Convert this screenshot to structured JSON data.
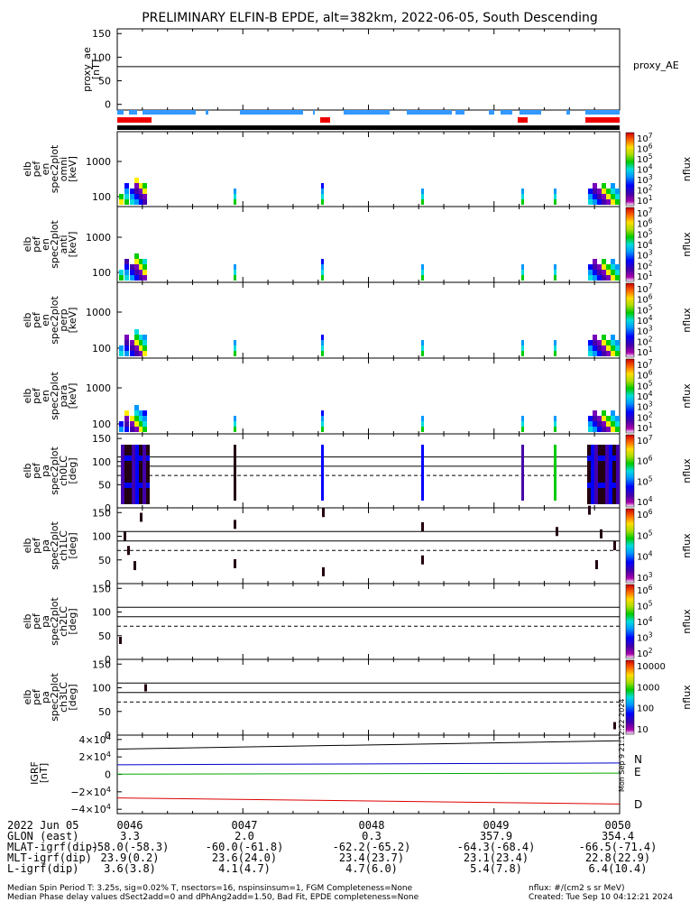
{
  "title": "PRELIMINARY ELFIN-B EPDE, alt=382km, 2022-06-05, South Descending",
  "colors": {
    "blue_bar": "#3399ff",
    "red_bar": "#ee0000",
    "black_bar": "#000000",
    "N": "#0000cc",
    "E": "#00aa00",
    "D": "#dd0000"
  },
  "chart_data": [
    {
      "type": "line",
      "panel": "proxy_ae",
      "ylabel": [
        "proxy_ae",
        "[nT]"
      ],
      "legend": "proxy_AE",
      "ylim": [
        -12,
        160
      ],
      "yticks": [
        "150",
        "100",
        "50",
        "0"
      ],
      "x": [
        0,
        1
      ],
      "values": [
        80,
        80
      ]
    },
    {
      "type": "heatmap",
      "panel": "elb_pef_en_spec2plot_omni",
      "ylabel": [
        "elb",
        "pef",
        "en",
        "spec2plot",
        "omni",
        "[keV]"
      ],
      "yticks": [
        "1000",
        "100"
      ],
      "colorbar": {
        "label": "nflux",
        "ticks": [
          "10^7",
          "10^6",
          "10^5",
          "10^4",
          "10^3",
          "10^2",
          "10^1"
        ]
      }
    },
    {
      "type": "heatmap",
      "panel": "elb_pef_en_spec2plot_anti",
      "ylabel": [
        "elb",
        "pef",
        "en",
        "spec2plot",
        "anti",
        "[keV]"
      ],
      "yticks": [
        "1000",
        "100"
      ],
      "colorbar": {
        "label": "nflux",
        "ticks": [
          "10^7",
          "10^6",
          "10^5",
          "10^4",
          "10^3",
          "10^2",
          "10^1"
        ]
      }
    },
    {
      "type": "heatmap",
      "panel": "elb_pef_en_spec2plot_perp",
      "ylabel": [
        "elb",
        "pef",
        "en",
        "spec2plot",
        "perp",
        "[keV]"
      ],
      "yticks": [
        "1000",
        "100"
      ],
      "colorbar": {
        "label": "nflux",
        "ticks": [
          "10^7",
          "10^6",
          "10^5",
          "10^4",
          "10^3",
          "10^2",
          "10^1"
        ]
      }
    },
    {
      "type": "heatmap",
      "panel": "elb_pef_en_spec2plot_para",
      "ylabel": [
        "elb",
        "pef",
        "en",
        "spec2plot",
        "para",
        "[keV]"
      ],
      "yticks": [
        "1000",
        "100"
      ],
      "colorbar": {
        "label": "nflux",
        "ticks": [
          "10^7",
          "10^6",
          "10^5",
          "10^4",
          "10^3",
          "10^2",
          "10^1"
        ]
      }
    },
    {
      "type": "heatmap",
      "panel": "elb_pef_pa_spec2plot_ch0LC",
      "ylabel": [
        "elb",
        "pef",
        "pa",
        "spec2plot",
        "ch0LC",
        "[deg]"
      ],
      "yticks": [
        "150",
        "100",
        "50",
        "0"
      ],
      "ylim": [
        0,
        160
      ],
      "colorbar": {
        "label": "nflux",
        "ticks": [
          "10^7",
          "10^6",
          "10^5",
          "10^4"
        ]
      }
    },
    {
      "type": "heatmap",
      "panel": "elb_pef_pa_spec2plot_ch1LC",
      "ylabel": [
        "elb",
        "pef",
        "pa",
        "spec2plot",
        "ch1LC",
        "[deg]"
      ],
      "yticks": [
        "150",
        "100",
        "50",
        "0"
      ],
      "ylim": [
        0,
        160
      ],
      "colorbar": {
        "label": "nflux",
        "ticks": [
          "10^6",
          "10^5",
          "10^4",
          "10^3"
        ]
      }
    },
    {
      "type": "heatmap",
      "panel": "elb_pef_pa_spec2plot_ch2LC",
      "ylabel": [
        "elb",
        "pef",
        "pa",
        "spec2plot",
        "ch2LC",
        "[deg]"
      ],
      "yticks": [
        "150",
        "100",
        "50",
        "0"
      ],
      "ylim": [
        0,
        160
      ],
      "colorbar": {
        "label": "nflux",
        "ticks": [
          "10^6",
          "10^5",
          "10^4",
          "10^3",
          "10^2"
        ]
      }
    },
    {
      "type": "heatmap",
      "panel": "elb_pef_pa_spec2plot_ch3LC",
      "ylabel": [
        "elb",
        "pef",
        "pa",
        "spec2plot",
        "ch3LC",
        "[deg]"
      ],
      "yticks": [
        "150",
        "100",
        "50",
        "0"
      ],
      "ylim": [
        0,
        160
      ],
      "colorbar": {
        "label": "nflux",
        "ticks": [
          "10000",
          "1000",
          "100",
          "10"
        ]
      }
    },
    {
      "type": "line",
      "panel": "IGRF",
      "ylabel": [
        "IGRF",
        "[nT]"
      ],
      "yticks": [
        "4×10^4",
        "2×10^4",
        "0",
        "−2×10^4",
        "−4×10^4"
      ],
      "ylim": [
        -45000,
        45000
      ],
      "x": [
        0,
        1
      ],
      "series": [
        {
          "name": "N",
          "values": [
            11000,
            13000
          ]
        },
        {
          "name": "E",
          "values": [
            200,
            1400
          ]
        },
        {
          "name": "D",
          "values": [
            -27000,
            -34000
          ]
        },
        {
          "values": [
            29000,
            38500
          ]
        }
      ]
    }
  ],
  "xaxis": {
    "ticks": [
      "0046",
      "0047",
      "0048",
      "0049",
      "0050"
    ],
    "date_label": "2022 Jun 05",
    "rows": [
      {
        "label": "GLON (east)",
        "values": [
          "3.3",
          "2.0",
          "0.3",
          "357.9",
          "354.4"
        ]
      },
      {
        "label": "MLAT-igrf(dip)",
        "values": [
          "-58.0(-58.3)",
          "-60.0(-61.8)",
          "-62.2(-65.2)",
          "-64.3(-68.4)",
          "-66.5(-71.4)"
        ]
      },
      {
        "label": "MLT-igrf(dip)",
        "values": [
          "23.9(0.2)",
          "23.6(24.0)",
          "23.4(23.7)",
          "23.1(23.4)",
          "22.8(22.9)"
        ]
      },
      {
        "label": "L-igrf(dip)",
        "values": [
          "3.6(3.8)",
          "4.1(4.7)",
          "4.7(6.0)",
          "5.4(7.8)",
          "6.4(10.4)"
        ]
      }
    ]
  },
  "side_stamp": "Mon Sep 9 21:12:22 2024",
  "footer": {
    "line1": "Median Spin Period T: 3.25s, sig=0.02% T, nsectors=16, nspinsinsum=1, FGM Completeness=None",
    "line2": "Median Phase delay values dSect2add=0 and dPhAng2add=1.50, Bad Fit, EPDE completeness=None",
    "units": "nflux: #/(cm2 s sr MeV)",
    "created": "Created: Tue Sep 10 04:12:21 2024"
  }
}
